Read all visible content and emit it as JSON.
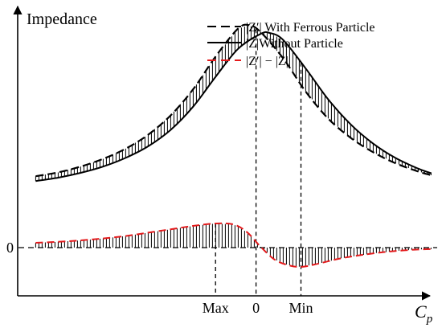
{
  "chart_data": {
    "type": "line",
    "title": "",
    "ylabel": "Impedance",
    "xlabel": "C",
    "xlabel_sub": "p",
    "ylim": [
      -1.0,
      5.0
    ],
    "xlim": [
      -5.4,
      4.0
    ],
    "grid": false,
    "legend": {
      "placement": "top-right",
      "entries": [
        {
          "label": "|Z′|  With Ferrous Particle",
          "style": "dashed",
          "color": "#000000"
        },
        {
          "label": "|Z|Without Particle",
          "style": "solid",
          "color": "#000000"
        },
        {
          "label": "|Z′| − |Z|",
          "style": "dashed",
          "color": "#e41a1c"
        }
      ]
    },
    "y_tick_labels": [
      {
        "value": 0,
        "label": "0"
      }
    ],
    "x_tick_labels": [
      {
        "value": -1.0,
        "label": "Max"
      },
      {
        "value": -0.1,
        "label": "0"
      },
      {
        "value": 0.9,
        "label": "Min"
      }
    ],
    "reference_line": {
      "y": 0,
      "style": "dashed"
    },
    "series": [
      {
        "name": "|Z′|  With Ferrous Particle",
        "style": "dashed",
        "color": "#000000",
        "x": [
          -5.0,
          -4.5,
          -4.0,
          -3.5,
          -3.0,
          -2.5,
          -2.0,
          -1.5,
          -1.0,
          -0.5,
          -0.25,
          0.0,
          0.5,
          1.0,
          1.5,
          2.0,
          2.5,
          3.0,
          3.5,
          3.8
        ],
        "y": [
          1.48,
          1.56,
          1.68,
          1.84,
          2.05,
          2.34,
          2.74,
          3.28,
          3.96,
          4.54,
          4.61,
          4.47,
          3.93,
          3.24,
          2.68,
          2.28,
          1.98,
          1.75,
          1.58,
          1.5
        ]
      },
      {
        "name": "|Z|Without Particle",
        "style": "solid",
        "color": "#000000",
        "x": [
          -5.0,
          -4.5,
          -4.0,
          -3.5,
          -3.0,
          -2.5,
          -2.0,
          -1.5,
          -1.0,
          -0.5,
          0.0,
          0.2,
          0.5,
          1.0,
          1.5,
          2.0,
          2.5,
          3.0,
          3.5,
          3.8
        ],
        "y": [
          1.38,
          1.45,
          1.55,
          1.68,
          1.86,
          2.1,
          2.44,
          2.92,
          3.54,
          4.12,
          4.43,
          4.45,
          4.31,
          3.72,
          3.08,
          2.56,
          2.16,
          1.86,
          1.64,
          1.54
        ]
      },
      {
        "name": "|Z′| − |Z|",
        "style": "dashed",
        "color": "#e41a1c",
        "x": [
          -5.0,
          -4.5,
          -4.0,
          -3.5,
          -3.0,
          -2.5,
          -2.0,
          -1.5,
          -1.0,
          -0.6,
          -0.3,
          0.0,
          0.3,
          0.6,
          0.9,
          1.3,
          1.8,
          2.5,
          3.0,
          3.5,
          3.8
        ],
        "y": [
          0.1,
          0.12,
          0.15,
          0.19,
          0.24,
          0.31,
          0.38,
          0.45,
          0.5,
          0.48,
          0.32,
          0.02,
          -0.24,
          -0.36,
          -0.4,
          -0.33,
          -0.22,
          -0.12,
          -0.07,
          -0.04,
          -0.03
        ]
      }
    ]
  }
}
